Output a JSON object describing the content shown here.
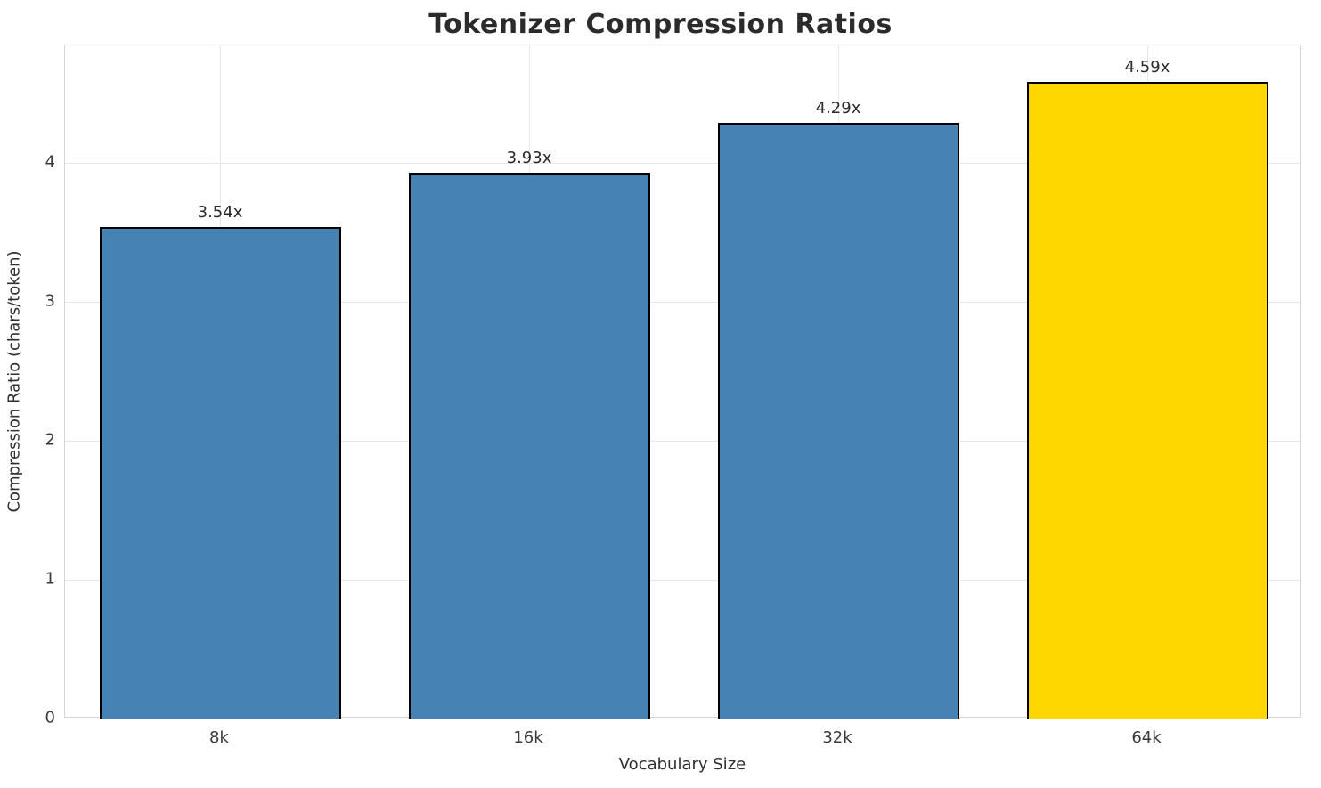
{
  "chart_data": {
    "type": "bar",
    "title": "Tokenizer Compression Ratios",
    "xlabel": "Vocabulary Size",
    "ylabel": "Compression Ratio (chars/token)",
    "categories": [
      "8k",
      "16k",
      "32k",
      "64k"
    ],
    "values": [
      3.54,
      3.93,
      4.29,
      4.59
    ],
    "bar_labels": [
      "3.54x",
      "3.93x",
      "4.29x",
      "4.59x"
    ],
    "bar_colors": [
      "#4682b4",
      "#4682b4",
      "#4682b4",
      "#ffd700"
    ],
    "edge_color": "#000000",
    "ylim": [
      0,
      4.85
    ],
    "yticks": [
      0,
      1,
      2,
      3,
      4
    ],
    "grid": true,
    "legend": "none"
  }
}
